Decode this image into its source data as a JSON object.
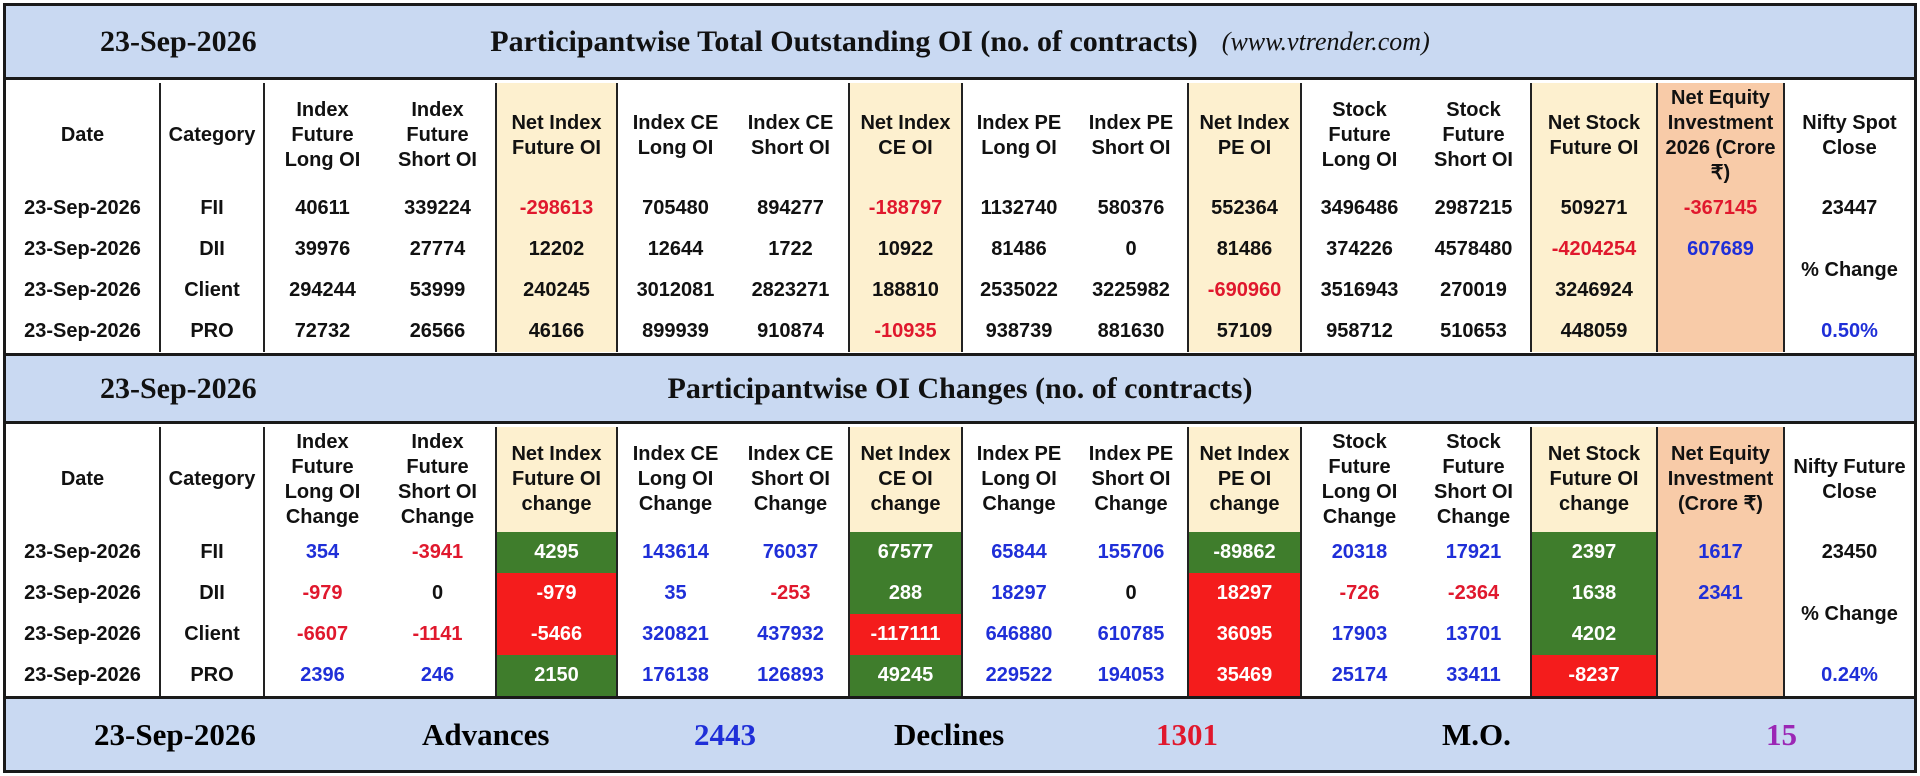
{
  "header": {
    "date": "23-Sep-2026",
    "title": "Participantwise Total Outstanding OI (no. of contracts)",
    "site": "(www.vtrender.com)"
  },
  "table1": {
    "headers": {
      "date": "Date",
      "category": "Category",
      "c1": "Index Future Long OI",
      "c2": "Index Future Short OI",
      "c3": "Net Index Future OI",
      "c4": "Index CE Long OI",
      "c5": "Index CE Short OI",
      "c6": "Net Index CE OI",
      "c7": "Index PE Long OI",
      "c8": "Index PE Short OI",
      "c9": "Net Index PE OI",
      "c10": "Stock Future Long OI",
      "c11": "Stock Future Short OI",
      "c12": "Net Stock Future OI",
      "c13": "Net Equity Investment 2026 (Crore ₹)",
      "c14": "Nifty Spot Close"
    },
    "rows": [
      {
        "date": "23-Sep-2026",
        "category": "FII",
        "c1": "40611",
        "c2": "339224",
        "c3": "-298613",
        "c4": "705480",
        "c5": "894277",
        "c6": "-188797",
        "c7": "1132740",
        "c8": "580376",
        "c9": "552364",
        "c10": "3496486",
        "c11": "2987215",
        "c12": "509271",
        "c13": "-367145"
      },
      {
        "date": "23-Sep-2026",
        "category": "DII",
        "c1": "39976",
        "c2": "27774",
        "c3": "12202",
        "c4": "12644",
        "c5": "1722",
        "c6": "10922",
        "c7": "81486",
        "c8": "0",
        "c9": "81486",
        "c10": "374226",
        "c11": "4578480",
        "c12": "-4204254",
        "c13": "607689"
      },
      {
        "date": "23-Sep-2026",
        "category": "Client",
        "c1": "294244",
        "c2": "53999",
        "c3": "240245",
        "c4": "3012081",
        "c5": "2823271",
        "c6": "188810",
        "c7": "2535022",
        "c8": "3225982",
        "c9": "-690960",
        "c10": "3516943",
        "c11": "270019",
        "c12": "3246924",
        "c13": ""
      },
      {
        "date": "23-Sep-2026",
        "category": "PRO",
        "c1": "72732",
        "c2": "26566",
        "c3": "46166",
        "c4": "899939",
        "c5": "910874",
        "c6": "-10935",
        "c7": "938739",
        "c8": "881630",
        "c9": "57109",
        "c10": "958712",
        "c11": "510653",
        "c12": "448059",
        "c13": ""
      }
    ],
    "spot_close": "23447",
    "pct_label": "% Change",
    "pct_value": "0.50%"
  },
  "section2": {
    "date": "23-Sep-2026",
    "title": "Participantwise OI Changes (no. of contracts)"
  },
  "table2": {
    "headers": {
      "date": "Date",
      "category": "Category",
      "c1": "Index Future Long OI Change",
      "c2": "Index Future Short OI Change",
      "c3": "Net Index Future OI change",
      "c4": "Index CE Long OI Change",
      "c5": "Index CE Short OI Change",
      "c6": "Net Index CE OI change",
      "c7": "Index PE Long OI Change",
      "c8": "Index PE Short OI Change",
      "c9": "Net Index PE OI change",
      "c10": "Stock Future Long OI Change",
      "c11": "Stock Future Short OI Change",
      "c12": "Net Stock Future OI change",
      "c13": "Net Equity Investment (Crore ₹)",
      "c14": "Nifty Future Close"
    },
    "rows": [
      {
        "date": "23-Sep-2026",
        "category": "FII",
        "c1": "354",
        "c2": "-3941",
        "c3": "4295",
        "c4": "143614",
        "c5": "76037",
        "c6": "67577",
        "c7": "65844",
        "c8": "155706",
        "c9": "-89862",
        "c10": "20318",
        "c11": "17921",
        "c12": "2397",
        "c13": "1617"
      },
      {
        "date": "23-Sep-2026",
        "category": "DII",
        "c1": "-979",
        "c2": "0",
        "c3": "-979",
        "c4": "35",
        "c5": "-253",
        "c6": "288",
        "c7": "18297",
        "c8": "0",
        "c9": "18297",
        "c10": "-726",
        "c11": "-2364",
        "c12": "1638",
        "c13": "2341"
      },
      {
        "date": "23-Sep-2026",
        "category": "Client",
        "c1": "-6607",
        "c2": "-1141",
        "c3": "-5466",
        "c4": "320821",
        "c5": "437932",
        "c6": "-117111",
        "c7": "646880",
        "c8": "610785",
        "c9": "36095",
        "c10": "17903",
        "c11": "13701",
        "c12": "4202",
        "c13": ""
      },
      {
        "date": "23-Sep-2026",
        "category": "PRO",
        "c1": "2396",
        "c2": "246",
        "c3": "2150",
        "c4": "176138",
        "c5": "126893",
        "c6": "49245",
        "c7": "229522",
        "c8": "194053",
        "c9": "35469",
        "c10": "25174",
        "c11": "33411",
        "c12": "-8237",
        "c13": ""
      }
    ],
    "future_close": "23450",
    "pct_label": "% Change",
    "pct_value": "0.24%"
  },
  "footer": {
    "date": "23-Sep-2026",
    "advances_label": "Advances",
    "advances": "2443",
    "declines_label": "Declines",
    "declines": "1301",
    "mo_label": "M.O.",
    "mo": "15"
  },
  "colors": {
    "title_bg": "#c9d9f2",
    "cream": "#fdf0cf",
    "peach": "#f8cba8",
    "green": "#3f7d2c",
    "red_bg": "#f41c1c",
    "red_text": "#e0182d",
    "blue_text": "#1f2fd8",
    "purple_text": "#9b27b5"
  }
}
